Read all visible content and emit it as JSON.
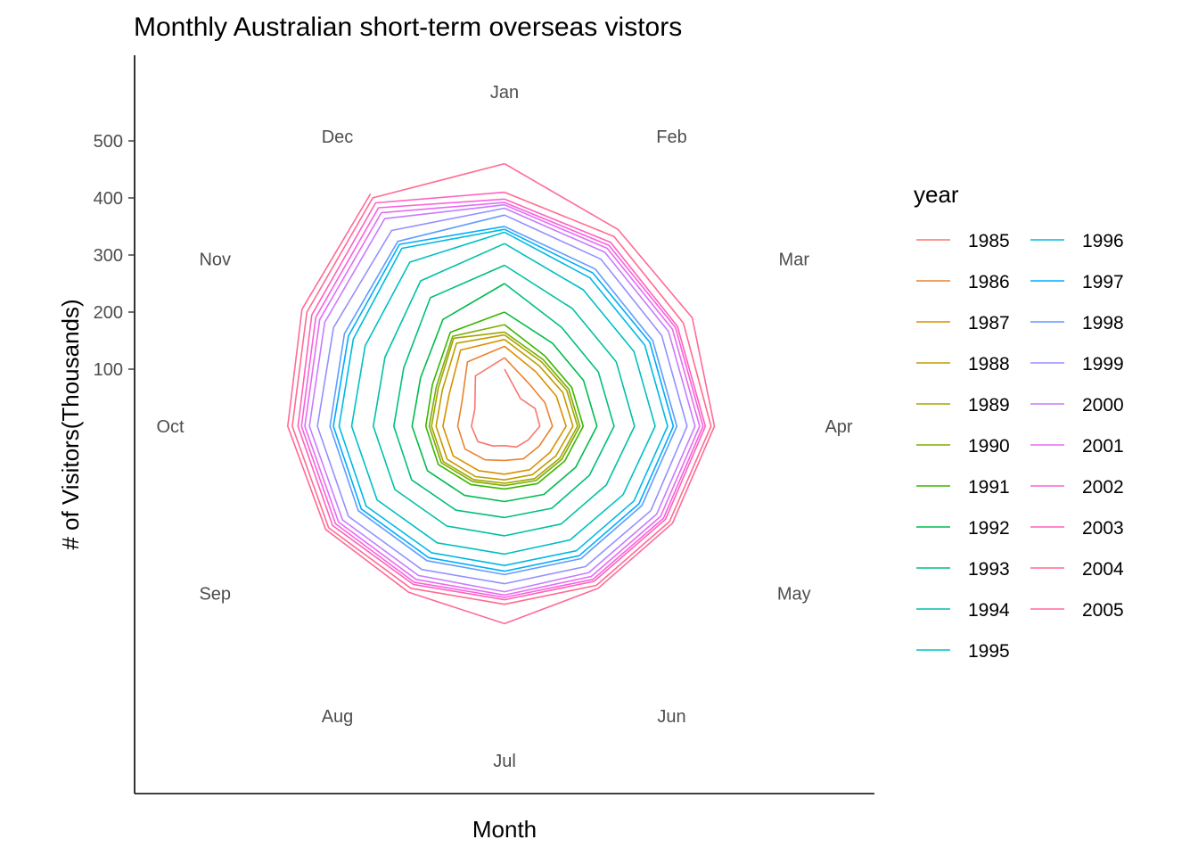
{
  "chart_data": {
    "type": "line",
    "coord": "polar",
    "title": "Monthly Australian short-term overseas vistors",
    "xlabel": "Month",
    "ylabel": "# of Visitors(Thousands)",
    "y_ticks": [
      100,
      200,
      300,
      400,
      500
    ],
    "ylim": [
      0,
      650
    ],
    "grid": false,
    "legend_title": "year",
    "legend_position": "right",
    "categories": [
      "Jan",
      "Feb",
      "Mar",
      "Apr",
      "May",
      "Jun",
      "Jul",
      "Aug",
      "Sep",
      "Oct",
      "Nov",
      "Dec"
    ],
    "series": [
      {
        "name": "1985",
        "color": "#F8766D",
        "values": [
          100,
          56,
          62,
          62,
          48,
          42,
          34,
          40,
          54,
          58,
          60,
          102
        ]
      },
      {
        "name": "1986",
        "color": "#EA8331",
        "values": [
          120,
          86,
          82,
          84,
          70,
          66,
          60,
          68,
          80,
          82,
          86,
          130
        ]
      },
      {
        "name": "1987",
        "color": "#D89000",
        "values": [
          140,
          110,
          105,
          108,
          92,
          88,
          84,
          90,
          104,
          108,
          112,
          154
        ]
      },
      {
        "name": "1988",
        "color": "#C09B00",
        "values": [
          152,
          122,
          118,
          120,
          104,
          98,
          94,
          102,
          116,
          120,
          126,
          168
        ]
      },
      {
        "name": "1989",
        "color": "#A3A500",
        "values": [
          160,
          130,
          126,
          128,
          112,
          106,
          100,
          108,
          124,
          128,
          134,
          178
        ]
      },
      {
        "name": "1990",
        "color": "#7CAE00",
        "values": [
          165,
          135,
          130,
          132,
          116,
          110,
          104,
          112,
          128,
          132,
          138,
          182
        ]
      },
      {
        "name": "1991",
        "color": "#39B600",
        "values": [
          178,
          142,
          136,
          138,
          122,
          116,
          110,
          118,
          134,
          138,
          146,
          190
        ]
      },
      {
        "name": "1992",
        "color": "#00BB4E",
        "values": [
          200,
          168,
          160,
          162,
          144,
          138,
          132,
          140,
          156,
          162,
          170,
          216
        ]
      },
      {
        "name": "1993",
        "color": "#00BF7D",
        "values": [
          250,
          200,
          190,
          192,
          172,
          166,
          160,
          170,
          188,
          194,
          204,
          260
        ]
      },
      {
        "name": "1994",
        "color": "#00C1A3",
        "values": [
          282,
          238,
          226,
          228,
          206,
          198,
          192,
          202,
          222,
          230,
          242,
          294
        ]
      },
      {
        "name": "1995",
        "color": "#00BFC4",
        "values": [
          320,
          276,
          262,
          264,
          240,
          230,
          224,
          236,
          258,
          268,
          282,
          332
        ]
      },
      {
        "name": "1996",
        "color": "#00B9E3",
        "values": [
          340,
          300,
          284,
          286,
          262,
          252,
          244,
          256,
          280,
          290,
          306,
          360
        ]
      },
      {
        "name": "1997",
        "color": "#00ADFA",
        "values": [
          345,
          310,
          294,
          296,
          272,
          262,
          254,
          266,
          290,
          300,
          316,
          368
        ]
      },
      {
        "name": "1998",
        "color": "#619CFF",
        "values": [
          350,
          318,
          300,
          302,
          278,
          268,
          260,
          272,
          296,
          306,
          324,
          374
        ]
      },
      {
        "name": "1999",
        "color": "#9590FF",
        "values": [
          370,
          338,
          318,
          320,
          296,
          284,
          276,
          290,
          316,
          328,
          346,
          396
        ]
      },
      {
        "name": "2000",
        "color": "#C77CFF",
        "values": [
          382,
          352,
          332,
          334,
          308,
          296,
          290,
          302,
          328,
          342,
          364,
          420
        ]
      },
      {
        "name": "2001",
        "color": "#E76BF3",
        "values": [
          388,
          360,
          340,
          342,
          316,
          304,
          296,
          310,
          336,
          350,
          374,
          432
        ]
      },
      {
        "name": "2002",
        "color": "#FA62DB",
        "values": [
          392,
          366,
          346,
          348,
          322,
          310,
          300,
          316,
          342,
          356,
          382,
          442
        ]
      },
      {
        "name": "2003",
        "color": "#FF62BC",
        "values": [
          398,
          372,
          350,
          352,
          326,
          314,
          304,
          320,
          348,
          362,
          390,
          452
        ]
      },
      {
        "name": "2004",
        "color": "#FF6C91",
        "values": [
          410,
          384,
          362,
          362,
          334,
          322,
          312,
          328,
          356,
          372,
          400,
          462
        ]
      },
      {
        "name": "2005",
        "color": "#FF6A98",
        "values": [
          460,
          398,
          380,
          368,
          340,
          328,
          346,
          336,
          362,
          380,
          410,
          470
        ]
      }
    ]
  }
}
